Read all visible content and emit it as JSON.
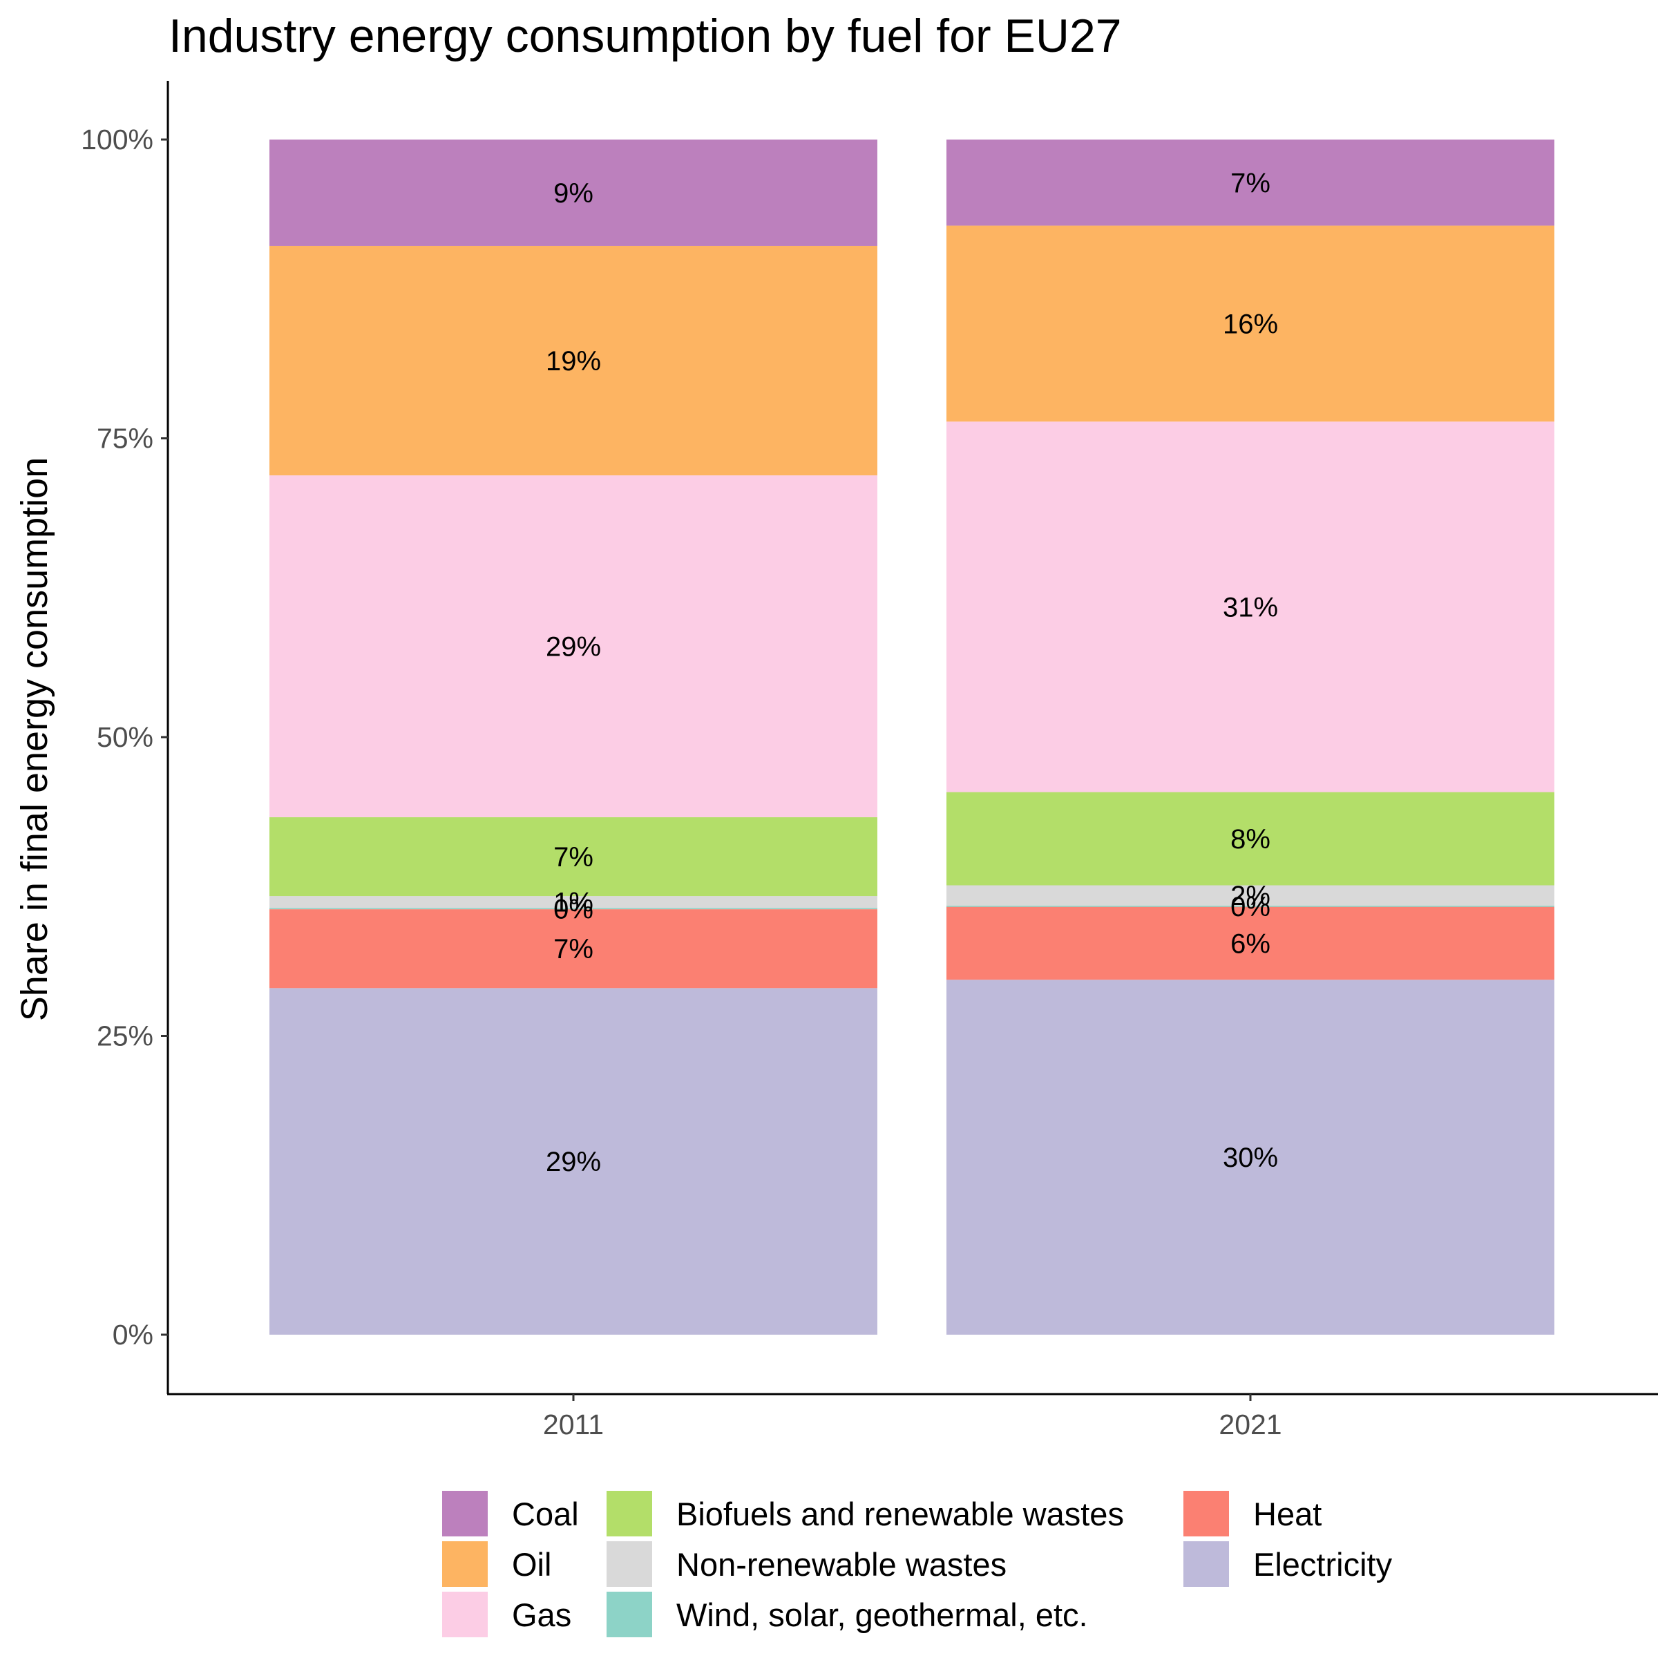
{
  "chart_data": {
    "type": "bar",
    "stacked": true,
    "title": "Industry energy consumption by fuel for  EU27",
    "xlabel": "",
    "ylabel": "Share in final energy consumption",
    "categories": [
      "2011",
      "2021"
    ],
    "ylim": [
      0,
      1
    ],
    "yticks": [
      {
        "value": 0,
        "label": "0%"
      },
      {
        "value": 0.25,
        "label": "25%"
      },
      {
        "value": 0.5,
        "label": "50%"
      },
      {
        "value": 0.75,
        "label": "75%"
      },
      {
        "value": 1.0,
        "label": "100%"
      }
    ],
    "grid": false,
    "legend_position": "bottom",
    "series": [
      {
        "name": "Electricity",
        "color": "#bebada",
        "values": [
          0.29,
          0.297
        ],
        "labels": [
          "29%",
          "30%"
        ]
      },
      {
        "name": "Heat",
        "color": "#fb8072",
        "values": [
          0.066,
          0.061
        ],
        "labels": [
          "7%",
          "6%"
        ]
      },
      {
        "name": "Wind, solar, geothermal, etc.",
        "color": "#8dd3c7",
        "values": [
          0.001,
          0.001
        ],
        "labels": [
          "0%",
          "0%"
        ]
      },
      {
        "name": "Non-renewable wastes",
        "color": "#d9d9d9",
        "values": [
          0.01,
          0.017
        ],
        "labels": [
          "1%",
          "2%"
        ]
      },
      {
        "name": "Biofuels and renewable wastes",
        "color": "#b3de69",
        "values": [
          0.066,
          0.078
        ],
        "labels": [
          "7%",
          "8%"
        ]
      },
      {
        "name": "Gas",
        "color": "#fccde5",
        "values": [
          0.286,
          0.31
        ],
        "labels": [
          "29%",
          "31%"
        ]
      },
      {
        "name": "Oil",
        "color": "#fdb462",
        "values": [
          0.192,
          0.164
        ],
        "labels": [
          "19%",
          "16%"
        ]
      },
      {
        "name": "Coal",
        "color": "#bc80bd",
        "values": [
          0.089,
          0.072
        ],
        "labels": [
          "9%",
          "7%"
        ]
      }
    ],
    "legend": {
      "columns": [
        [
          "Coal",
          "Oil",
          "Gas"
        ],
        [
          "Biofuels and renewable wastes",
          "Non-renewable wastes",
          "Wind, solar, geothermal, etc."
        ],
        [
          "Heat",
          "Electricity"
        ]
      ]
    }
  }
}
